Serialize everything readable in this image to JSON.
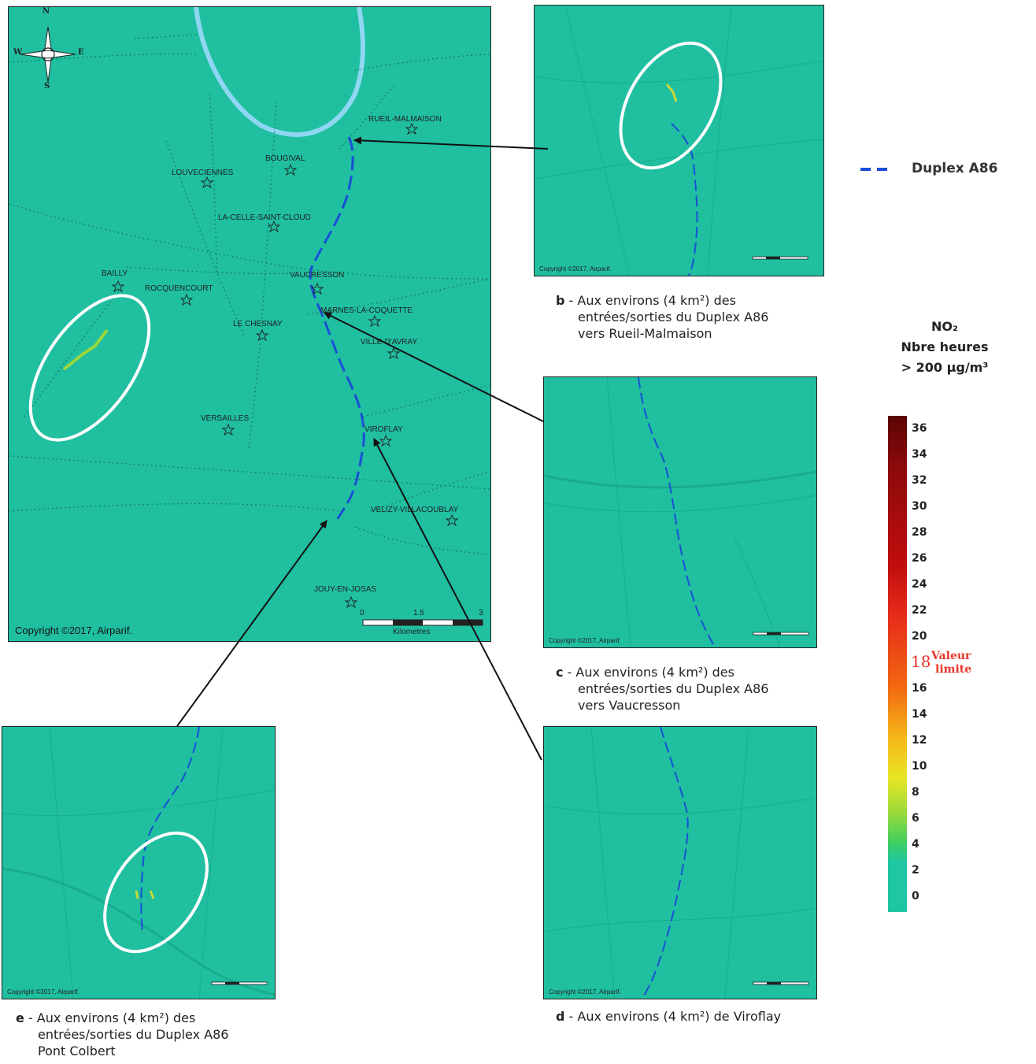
{
  "main_map": {
    "copyright": "Copyright ©2017, Airparif.",
    "compass": {
      "n": "N",
      "s": "S",
      "w": "W",
      "e": "E"
    },
    "scale": {
      "ticks": [
        "0",
        "1.5",
        "3"
      ],
      "unit": "Kilometres"
    },
    "towns": [
      {
        "name": "RUEIL-MALMAISON"
      },
      {
        "name": "BOUGIVAL"
      },
      {
        "name": "LOUVECIENNES"
      },
      {
        "name": "LA-CELLE-SAINT-CLOUD"
      },
      {
        "name": "VAUCRESSON"
      },
      {
        "name": "BAILLY"
      },
      {
        "name": "ROCQUENCOURT"
      },
      {
        "name": "MARNES-LA-COQUETTE"
      },
      {
        "name": "LE CHESNAY"
      },
      {
        "name": "VILLE-D'AVRAY"
      },
      {
        "name": "VERSAILLES"
      },
      {
        "name": "VIROFLAY"
      },
      {
        "name": "VELIZY-VILLACOUBLAY"
      },
      {
        "name": "JOUY-EN-JOSAS"
      }
    ]
  },
  "insets": [
    {
      "id": "b",
      "copyright": "Copyright ©2017, Airparif."
    },
    {
      "id": "c",
      "copyright": "Copyright ©2017, Airparif."
    },
    {
      "id": "d",
      "copyright": "Copyright ©2017, Airparif."
    },
    {
      "id": "e",
      "copyright": "Copyright ©2017, Airparif."
    }
  ],
  "captions": {
    "b": {
      "letter": "b",
      "line1": " - Aux environs (4 km²) des",
      "line2": "entrées/sorties du Duplex A86",
      "line3": "vers Rueil-Malmaison"
    },
    "c": {
      "letter": "c",
      "line1": " - Aux environs (4 km²) des",
      "line2": "entrées/sorties du Duplex A86",
      "line3": "vers Vaucresson"
    },
    "d": {
      "letter": "d",
      "line1": " - Aux environs (4 km²) de Viroflay"
    },
    "e": {
      "letter": "e",
      "line1": " - Aux environs (4 km²) des",
      "line2": "entrées/sorties du Duplex A86",
      "line3": "Pont Colbert"
    }
  },
  "legend": {
    "route_label": "Duplex A86",
    "route_color": "#1a4fd6",
    "title_line1": "NO₂",
    "title_line2": "Nbre heures",
    "title_line3": "> 200 µg/m³",
    "ticks": [
      "36",
      "34",
      "32",
      "30",
      "28",
      "26",
      "24",
      "22",
      "20",
      "18",
      "16",
      "14",
      "12",
      "10",
      "8",
      "6",
      "4",
      "2",
      "0"
    ],
    "limit_value": "18",
    "limit_text_1": "Valeur",
    "limit_text_2": "limite"
  }
}
